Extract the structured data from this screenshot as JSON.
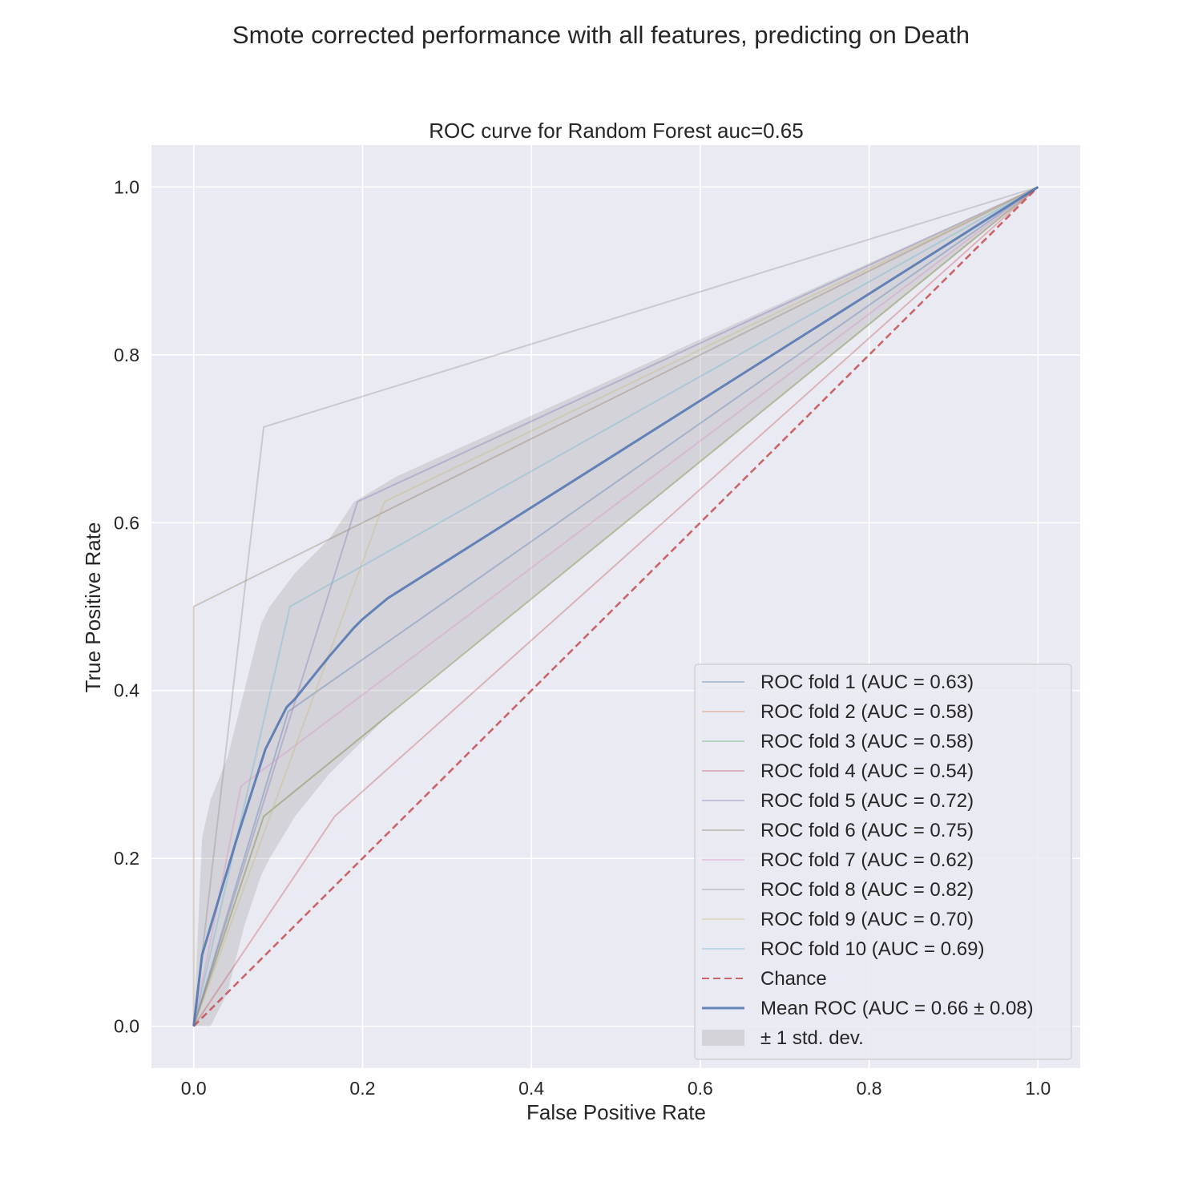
{
  "figure": {
    "suptitle": "Smote corrected performance with all features, predicting on Death"
  },
  "chart_data": {
    "type": "line",
    "title": "ROC curve for Random Forest auc=0.65",
    "xlabel": "False Positive Rate",
    "ylabel": "True Positive Rate",
    "xlim": [
      -0.05,
      1.05
    ],
    "ylim": [
      -0.05,
      1.05
    ],
    "xticks": [
      0.0,
      0.2,
      0.4,
      0.6,
      0.8,
      1.0
    ],
    "xtick_labels": [
      "0.0",
      "0.2",
      "0.4",
      "0.6",
      "0.8",
      "1.0"
    ],
    "yticks": [
      0.0,
      0.2,
      0.4,
      0.6,
      0.8,
      1.0
    ],
    "ytick_labels": [
      "0.0",
      "0.2",
      "0.4",
      "0.6",
      "0.8",
      "1.0"
    ],
    "grid": true,
    "background": "#eaeaf2",
    "legend_position": "lower right",
    "series": [
      {
        "name": "ROC fold 1 (AUC = 0.63)",
        "color": "#4c72b0",
        "x": [
          0,
          0.112,
          1
        ],
        "y": [
          0,
          0.375,
          1
        ]
      },
      {
        "name": "ROC fold 2 (AUC = 0.58)",
        "color": "#dd8452",
        "x": [
          0,
          0.083,
          1
        ],
        "y": [
          0,
          0.25,
          1
        ]
      },
      {
        "name": "ROC fold 3 (AUC = 0.58)",
        "color": "#55a868",
        "x": [
          0,
          0.083,
          1
        ],
        "y": [
          0,
          0.25,
          1
        ]
      },
      {
        "name": "ROC fold 4 (AUC = 0.54)",
        "color": "#c44e52",
        "x": [
          0,
          0.167,
          1
        ],
        "y": [
          0,
          0.25,
          1
        ]
      },
      {
        "name": "ROC fold 5 (AUC = 0.72)",
        "color": "#8172b3",
        "x": [
          0,
          0.194,
          1
        ],
        "y": [
          0,
          0.625,
          1
        ]
      },
      {
        "name": "ROC fold 6 (AUC = 0.75)",
        "color": "#937860",
        "x": [
          0,
          0,
          1
        ],
        "y": [
          0,
          0.5,
          1
        ]
      },
      {
        "name": "ROC fold 7 (AUC = 0.62)",
        "color": "#da8bc3",
        "x": [
          0,
          0.056,
          1
        ],
        "y": [
          0,
          0.286,
          1
        ]
      },
      {
        "name": "ROC fold 8 (AUC = 0.82)",
        "color": "#8c8c8c",
        "x": [
          0,
          0.083,
          1
        ],
        "y": [
          0,
          0.714,
          1
        ]
      },
      {
        "name": "ROC fold 9 (AUC = 0.70)",
        "color": "#ccb974",
        "x": [
          0,
          0.226,
          1
        ],
        "y": [
          0,
          0.625,
          1
        ]
      },
      {
        "name": "ROC fold 10 (AUC = 0.69)",
        "color": "#64b5cd",
        "x": [
          0,
          0.114,
          1
        ],
        "y": [
          0,
          0.5,
          1
        ]
      }
    ],
    "chance": {
      "name": "Chance",
      "color": "#c44e52",
      "x": [
        0,
        1
      ],
      "y": [
        0,
        1
      ]
    },
    "mean": {
      "name": "Mean ROC (AUC = 0.66 ± 0.08)",
      "color": "#4c72b0",
      "x": [
        0,
        0.01,
        0.05,
        0.085,
        0.1,
        0.11,
        0.12,
        0.16,
        0.19,
        0.2,
        0.23,
        1.0
      ],
      "y": [
        0,
        0.085,
        0.22,
        0.33,
        0.36,
        0.38,
        0.39,
        0.44,
        0.475,
        0.485,
        0.51,
        1.0
      ]
    },
    "band": {
      "name": "± 1 std. dev.",
      "color": "#a0a0a0",
      "x": [
        0,
        0.01,
        0.02,
        0.04,
        0.06,
        0.08,
        0.09,
        0.12,
        0.16,
        0.19,
        0.24,
        1.0
      ],
      "upper": [
        0,
        0.225,
        0.27,
        0.32,
        0.4,
        0.48,
        0.5,
        0.54,
        0.58,
        0.625,
        0.655,
        1.0
      ],
      "lower": [
        0,
        0,
        0,
        0.04,
        0.12,
        0.18,
        0.2,
        0.25,
        0.3,
        0.33,
        0.38,
        1.0
      ]
    }
  }
}
